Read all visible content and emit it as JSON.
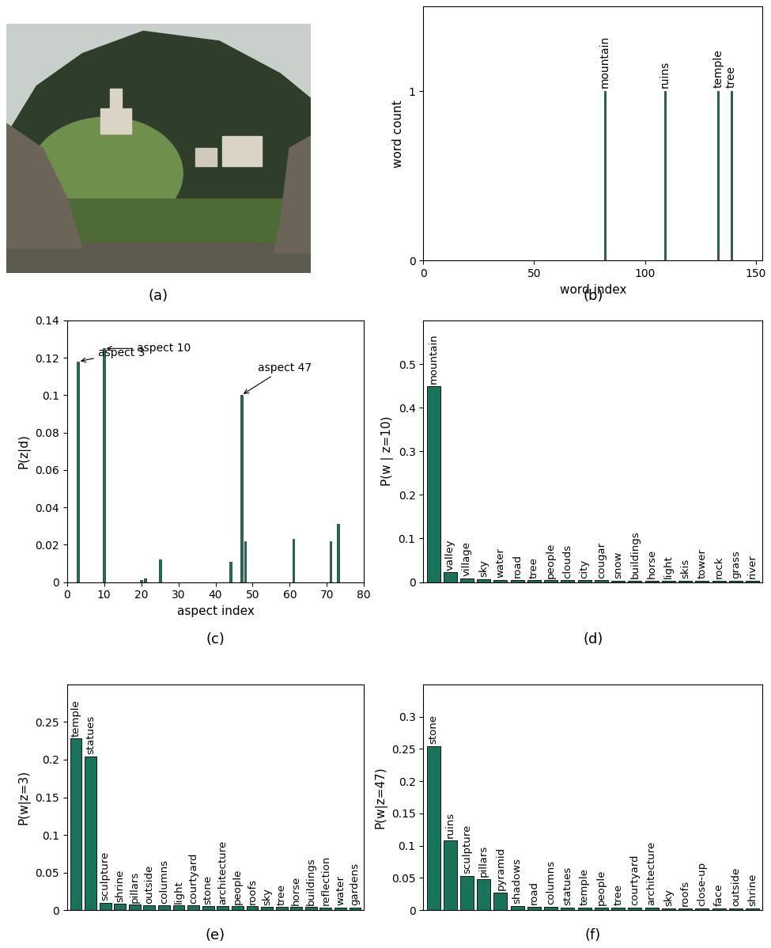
{
  "chart_data": [
    {
      "type": "image",
      "caption": "(a)"
    },
    {
      "type": "bar",
      "caption": "(b)",
      "xlabel": "word index",
      "ylabel": "word count",
      "x": [
        82,
        109,
        133,
        139
      ],
      "values": [
        1,
        1,
        1,
        1
      ],
      "bar_labels": [
        "mountain",
        "ruins",
        "temple",
        "tree"
      ],
      "xlim": [
        0,
        153
      ],
      "xticks": [
        0,
        50,
        100,
        150
      ],
      "ylim": [
        0,
        1.5
      ],
      "yticks": [
        0,
        1
      ],
      "color": "#17735a"
    },
    {
      "type": "bar",
      "caption": "(c)",
      "xlabel": "aspect index",
      "ylabel": "P(z|d)",
      "x": [
        3,
        10,
        20,
        21,
        25,
        44,
        47,
        48,
        61,
        71,
        73
      ],
      "values": [
        0.118,
        0.125,
        0.001,
        0.002,
        0.012,
        0.011,
        0.1,
        0.022,
        0.023,
        0.022,
        0.031
      ],
      "annotations": [
        {
          "text": "aspect 3",
          "x": 3,
          "y": 0.118
        },
        {
          "text": "aspect 10",
          "x": 10,
          "y": 0.125
        },
        {
          "text": "aspect 47",
          "x": 47,
          "y": 0.1
        }
      ],
      "xlim": [
        0,
        80
      ],
      "xticks": [
        0,
        10,
        20,
        30,
        40,
        50,
        60,
        70,
        80
      ],
      "ylim": [
        0,
        0.14
      ],
      "yticks": [
        0,
        0.02,
        0.04,
        0.06,
        0.08,
        0.1,
        0.12,
        0.14
      ],
      "color": "#17735a"
    },
    {
      "type": "bar",
      "caption": "(d)",
      "ylabel": "P(w | z=10)",
      "tick_labels": "y",
      "categories": [
        "mountain",
        "valley",
        "village",
        "sky",
        "water",
        "road",
        "tree",
        "people",
        "clouds",
        "city",
        "cougar",
        "snow",
        "buildings",
        "horse",
        "light",
        "skis",
        "tower",
        "rock",
        "grass",
        "river"
      ],
      "values": [
        0.45,
        0.022,
        0.008,
        0.006,
        0.005,
        0.005,
        0.004,
        0.004,
        0.004,
        0.004,
        0.004,
        0.003,
        0.003,
        0.003,
        0.003,
        0.003,
        0.003,
        0.003,
        0.003,
        0.003
      ],
      "ylim": [
        0,
        0.6
      ],
      "yticks": [
        0,
        0.1,
        0.2,
        0.3,
        0.4,
        0.5
      ],
      "color": "#17735a"
    },
    {
      "type": "bar",
      "caption": "(e)",
      "ylabel": "P(w|z=3)",
      "tick_labels": "y",
      "categories": [
        "temple",
        "statues",
        "sculpture",
        "shrine",
        "pillars",
        "outside",
        "columns",
        "light",
        "courtyard",
        "stone",
        "architecture",
        "people",
        "roofs",
        "sky",
        "tree",
        "horse",
        "buildings",
        "reflection",
        "water",
        "gardens"
      ],
      "values": [
        0.228,
        0.204,
        0.01,
        0.008,
        0.007,
        0.006,
        0.006,
        0.006,
        0.006,
        0.005,
        0.005,
        0.005,
        0.005,
        0.004,
        0.004,
        0.004,
        0.004,
        0.003,
        0.003,
        0.003
      ],
      "ylim": [
        0,
        0.3
      ],
      "yticks": [
        0,
        0.05,
        0.1,
        0.15,
        0.2,
        0.25
      ],
      "color": "#17735a"
    },
    {
      "type": "bar",
      "caption": "(f)",
      "ylabel": "P(w|z=47)",
      "tick_labels": "y",
      "categories": [
        "stone",
        "ruins",
        "sculpture",
        "pillars",
        "pyramid",
        "shadows",
        "road",
        "columns",
        "statues",
        "temple",
        "people",
        "tree",
        "courtyard",
        "architecture",
        "sky",
        "roofs",
        "close-up",
        "face",
        "outside",
        "shrine"
      ],
      "values": [
        0.254,
        0.108,
        0.053,
        0.048,
        0.027,
        0.006,
        0.005,
        0.005,
        0.004,
        0.004,
        0.004,
        0.004,
        0.004,
        0.004,
        0.003,
        0.003,
        0.003,
        0.003,
        0.003,
        0.003
      ],
      "ylim": [
        0,
        0.35
      ],
      "yticks": [
        0,
        0.05,
        0.1,
        0.15,
        0.2,
        0.25,
        0.3
      ],
      "color": "#17735a"
    }
  ]
}
